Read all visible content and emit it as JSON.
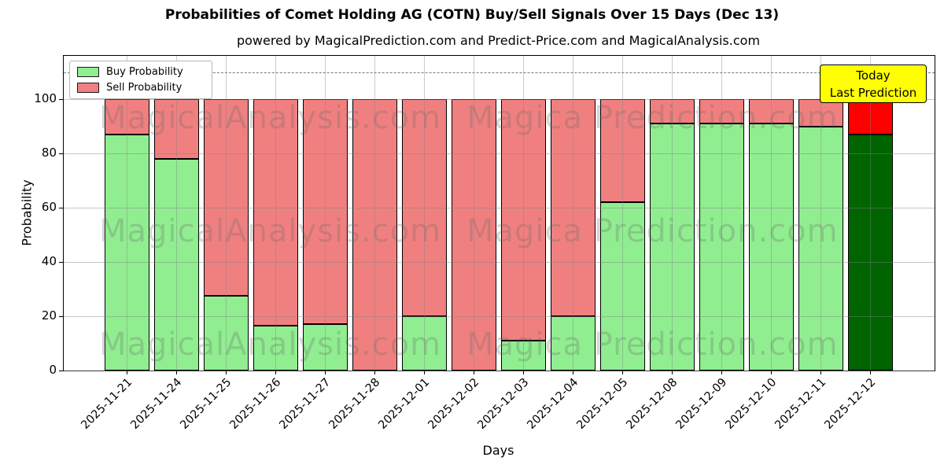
{
  "figure": {
    "title": "Probabilities of Comet Holding AG (COTN) Buy/Sell Signals Over 15 Days (Dec 13)",
    "subtitle": "powered by MagicalPrediction.com and Predict-Price.com and MagicalAnalysis.com"
  },
  "chart_data": {
    "type": "bar",
    "stacked": true,
    "title": "Probabilities of Comet Holding AG (COTN) Buy/Sell Signals Over 15 Days (Dec 13)",
    "xlabel": "Days",
    "ylabel": "Probability",
    "ylim": [
      0,
      116
    ],
    "yticks": [
      0,
      20,
      40,
      60,
      80,
      100
    ],
    "grid": true,
    "dashed_line_y": 110,
    "legend_position": "upper left",
    "categories": [
      "2025-11-21",
      "2025-11-24",
      "2025-11-25",
      "2025-11-26",
      "2025-11-27",
      "2025-11-28",
      "2025-12-01",
      "2025-12-02",
      "2025-12-03",
      "2025-12-04",
      "2025-12-05",
      "2025-12-08",
      "2025-12-09",
      "2025-12-10",
      "2025-12-11",
      "2025-12-12"
    ],
    "series": [
      {
        "name": "Buy Probability",
        "color": "#90EE90",
        "values": [
          87,
          78,
          27.5,
          16.5,
          17,
          0,
          20,
          0,
          11,
          20,
          62,
          91,
          91,
          91,
          90,
          87
        ]
      },
      {
        "name": "Sell Probability",
        "color": "#F08080",
        "values": [
          13,
          22,
          72.5,
          83.5,
          83,
          100,
          80,
          100,
          89,
          80,
          38,
          9,
          9,
          9,
          10,
          13
        ]
      }
    ],
    "today_index": 15,
    "today_colors": {
      "buy": "#006400",
      "sell": "#FF0000"
    }
  },
  "legend": {
    "items": [
      {
        "label": "Buy Probability",
        "color": "#90EE90"
      },
      {
        "label": "Sell Probability",
        "color": "#F08080"
      }
    ]
  },
  "annotation": {
    "line1": "Today",
    "line2": "Last Prediction",
    "bg_color": "#FFFF00"
  },
  "watermarks": {
    "left": "MagicalAnalysis.com",
    "right": "Magica Prediction.com"
  },
  "axes": {
    "xlabel": "Days",
    "ylabel": "Probability"
  }
}
